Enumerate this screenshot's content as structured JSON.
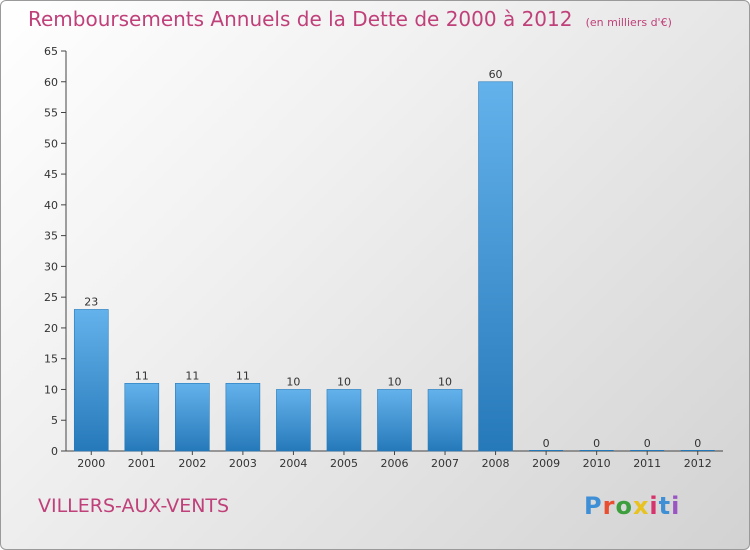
{
  "colors": {
    "title": "#c0407a",
    "bar_light": "#64b2ec",
    "bar_dark": "#2679b9",
    "axis": "#444444"
  },
  "logo": {
    "text": "Proxiti",
    "letter_colors": [
      "#3f8fd6",
      "#e84e2f",
      "#3c9e3c",
      "#e8c21e",
      "#d6336c",
      "#3f8fd6",
      "#9a54c4"
    ]
  },
  "chart_data": {
    "type": "bar",
    "title": "Remboursements Annuels de la Dette de 2000 à 2012",
    "subtitle": "(en milliers d'€)",
    "footer_label": "VILLERS-AUX-VENTS",
    "categories": [
      "2000",
      "2001",
      "2002",
      "2003",
      "2004",
      "2005",
      "2006",
      "2007",
      "2008",
      "2009",
      "2010",
      "2011",
      "2012"
    ],
    "values": [
      23,
      11,
      11,
      11,
      10,
      10,
      10,
      10,
      60,
      0,
      0,
      0,
      0
    ],
    "data_labels": [
      "23",
      "11",
      "11",
      "11",
      "10",
      "10",
      "10",
      "10",
      "60",
      "0",
      "0",
      "0",
      "0"
    ],
    "ylim": [
      0,
      65
    ],
    "yticks": [
      "0",
      "5",
      "10",
      "15",
      "20",
      "25",
      "30",
      "35",
      "40",
      "45",
      "50",
      "55",
      "60",
      "65"
    ],
    "grid": false,
    "legend": "none"
  }
}
